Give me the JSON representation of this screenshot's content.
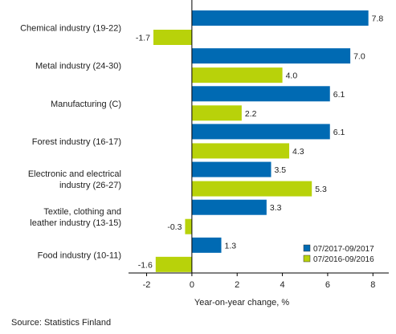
{
  "chart_data": {
    "type": "bar",
    "orientation": "horizontal",
    "categories": [
      [
        "Chemical industry (19-22)"
      ],
      [
        "Metal industry (24-30)"
      ],
      [
        "Manufacturing (C)"
      ],
      [
        "Forest industry (16-17)"
      ],
      [
        "Electronic and electrical",
        "industry (26-27)"
      ],
      [
        "Textile, clothing and",
        "leather industry (13-15)"
      ],
      [
        "Food industry (10-11)"
      ]
    ],
    "series": [
      {
        "name": "07/2017-09/2017",
        "color": "#006AB3",
        "values": [
          7.8,
          7.0,
          6.1,
          6.1,
          3.5,
          3.3,
          1.3
        ],
        "labels": [
          "7.8",
          "7.0",
          "6.1",
          "6.1",
          "3.5",
          "3.3",
          "1.3"
        ]
      },
      {
        "name": "07/2016-09/2016",
        "color": "#B8D20A",
        "values": [
          -1.7,
          4.0,
          2.2,
          4.3,
          5.3,
          -0.3,
          -1.6
        ],
        "labels": [
          "-1.7",
          "4.0",
          "2.2",
          "4.3",
          "5.3",
          "-0.3",
          "-1.6"
        ]
      }
    ],
    "xlabel": "Year-on-year change, %",
    "xlim": [
      -2.8,
      8.7
    ],
    "xticks": [
      -2,
      0,
      2,
      4,
      6,
      8
    ],
    "xtick_labels": [
      "-2",
      "0",
      "2",
      "4",
      "6",
      "8"
    ],
    "grid": false,
    "legend_position": "bottom-right",
    "source": "Source: Statistics Finland"
  }
}
